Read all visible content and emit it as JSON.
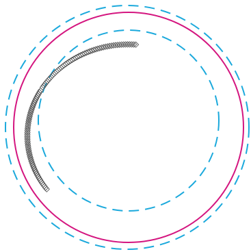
{
  "colors": {
    "background": "#ffffff",
    "dashed_circle": "#1ba9dc",
    "solid_circle": "#d4157f",
    "markers": "#555555"
  },
  "elements": {
    "outer_dashed_circle": {
      "style": "dashed"
    },
    "solid_circle": {
      "style": "solid"
    },
    "inner_dashed_circle": {
      "style": "dashed"
    },
    "marker_arc": {
      "marker_shape": "diamond-outline",
      "segments": 2
    }
  }
}
